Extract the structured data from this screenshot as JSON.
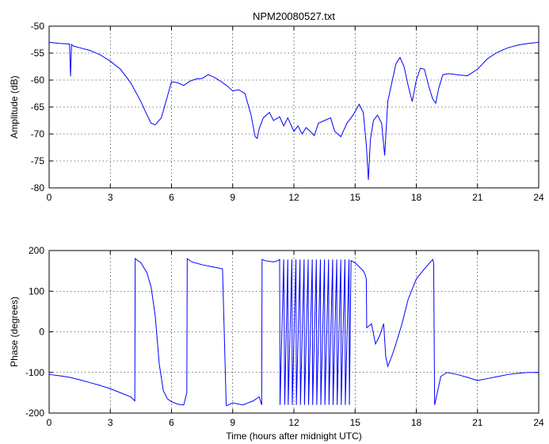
{
  "chart_data": [
    {
      "type": "line",
      "title": "NPM20080527.txt",
      "xlabel": "",
      "ylabel": "Amplitude (dB)",
      "xlim": [
        0,
        24
      ],
      "ylim": [
        -80,
        -50
      ],
      "xticks": [
        0,
        3,
        6,
        9,
        12,
        15,
        18,
        21,
        24
      ],
      "yticks": [
        -80,
        -75,
        -70,
        -65,
        -60,
        -55,
        -50
      ],
      "grid": true,
      "color": "#0000ff",
      "series": [
        {
          "x": [
            0,
            0.5,
            1.0,
            1.05,
            1.1,
            1.15,
            1.2,
            1.5,
            2.0,
            2.5,
            3.0,
            3.5,
            4.0,
            4.5,
            4.8,
            5.0,
            5.2,
            5.5,
            5.8,
            6.0,
            6.3,
            6.6,
            6.9,
            7.2,
            7.5,
            7.8,
            8.1,
            8.4,
            8.7,
            9.0,
            9.3,
            9.6,
            9.9,
            10.1,
            10.2,
            10.3,
            10.5,
            10.8,
            11.0,
            11.3,
            11.5,
            11.7,
            12.0,
            12.2,
            12.4,
            12.6,
            12.8,
            13.0,
            13.2,
            13.5,
            13.8,
            14.0,
            14.3,
            14.6,
            14.9,
            15.2,
            15.4,
            15.55,
            15.65,
            15.75,
            15.9,
            16.1,
            16.3,
            16.45,
            16.6,
            16.8,
            17.0,
            17.2,
            17.4,
            17.6,
            17.8,
            18.0,
            18.2,
            18.4,
            18.6,
            18.8,
            18.95,
            19.1,
            19.3,
            19.6,
            20.0,
            20.5,
            21.0,
            21.5,
            22.0,
            22.5,
            23.0,
            23.5,
            24.0
          ],
          "y": [
            -53.0,
            -53.2,
            -53.3,
            -59.3,
            -53.4,
            -53.6,
            -53.7,
            -54.0,
            -54.5,
            -55.3,
            -56.5,
            -58.0,
            -60.5,
            -64.0,
            -66.5,
            -68.0,
            -68.3,
            -67.0,
            -63.0,
            -60.3,
            -60.5,
            -61.0,
            -60.2,
            -59.8,
            -59.7,
            -59.0,
            -59.5,
            -60.2,
            -61.0,
            -62.0,
            -61.8,
            -62.5,
            -66.5,
            -70.5,
            -70.8,
            -69.0,
            -67.0,
            -66.0,
            -67.5,
            -66.8,
            -68.5,
            -67.0,
            -69.5,
            -68.5,
            -70.0,
            -68.8,
            -69.5,
            -70.3,
            -68.0,
            -67.5,
            -67.0,
            -69.5,
            -70.5,
            -68.0,
            -66.5,
            -64.5,
            -66.0,
            -72.0,
            -78.5,
            -71.0,
            -67.5,
            -66.5,
            -68.0,
            -74.0,
            -64.0,
            -60.5,
            -57.0,
            -55.8,
            -57.5,
            -61.0,
            -64.0,
            -60.0,
            -57.8,
            -58.0,
            -61.0,
            -63.5,
            -64.3,
            -61.5,
            -59.0,
            -58.8,
            -59.0,
            -59.2,
            -58.0,
            -56.0,
            -54.8,
            -54.0,
            -53.5,
            -53.2,
            -53.0
          ]
        }
      ]
    },
    {
      "type": "line",
      "title": "",
      "xlabel": "Time (hours after midnight UTC)",
      "ylabel": "Phase (degrees)",
      "xlim": [
        0,
        24
      ],
      "ylim": [
        -200,
        200
      ],
      "xticks": [
        0,
        3,
        6,
        9,
        12,
        15,
        18,
        21,
        24
      ],
      "yticks": [
        -200,
        -100,
        0,
        100,
        200
      ],
      "grid": true,
      "color": "#0000ff",
      "series": [
        {
          "x": [
            0,
            0.5,
            1.0,
            1.5,
            2.0,
            2.5,
            3.0,
            3.5,
            4.0,
            4.2,
            4.22,
            4.5,
            4.8,
            5.0,
            5.2,
            5.4,
            5.6,
            5.8,
            6.0,
            6.3,
            6.6,
            6.75,
            6.77,
            7.0,
            7.5,
            8.0,
            8.5,
            8.68,
            8.7,
            9.0,
            9.5,
            10.0,
            10.3,
            10.42,
            10.44,
            10.6,
            11.0,
            11.2,
            11.3,
            11.32,
            11.5,
            11.55,
            11.7,
            11.72,
            11.9,
            11.92,
            12.1,
            12.12,
            12.3,
            12.32,
            12.5,
            12.52,
            12.7,
            12.72,
            12.9,
            12.92,
            13.1,
            13.12,
            13.3,
            13.32,
            13.5,
            13.52,
            13.7,
            13.72,
            13.9,
            13.92,
            14.1,
            14.12,
            14.3,
            14.32,
            14.5,
            14.52,
            14.7,
            14.72,
            14.8,
            15.0,
            15.2,
            15.4,
            15.5,
            15.55,
            15.57,
            15.7,
            15.8,
            16.0,
            16.2,
            16.4,
            16.5,
            16.6,
            16.8,
            17.0,
            17.3,
            17.6,
            18.0,
            18.4,
            18.8,
            18.85,
            18.9,
            19.2,
            19.5,
            20.0,
            20.5,
            21.0,
            21.5,
            22.0,
            22.5,
            23.0,
            23.5,
            24.0
          ],
          "y": [
            -105,
            -108,
            -112,
            -118,
            -125,
            -132,
            -140,
            -150,
            -160,
            -170,
            180,
            170,
            145,
            110,
            40,
            -80,
            -145,
            -165,
            -172,
            -178,
            -180,
            -150,
            180,
            172,
            165,
            160,
            155,
            -178,
            -182,
            -175,
            -180,
            -170,
            -160,
            -180,
            178,
            175,
            172,
            175,
            178,
            -180,
            178,
            -180,
            178,
            -180,
            178,
            -180,
            178,
            -180,
            178,
            -180,
            178,
            -180,
            178,
            -180,
            178,
            -180,
            178,
            -180,
            178,
            -180,
            178,
            -180,
            178,
            -180,
            178,
            -180,
            178,
            -180,
            178,
            -180,
            178,
            -180,
            178,
            -180,
            175,
            170,
            160,
            150,
            140,
            130,
            10,
            15,
            20,
            -30,
            -10,
            20,
            -60,
            -85,
            -60,
            -30,
            20,
            80,
            130,
            155,
            178,
            170,
            -180,
            -110,
            -100,
            -105,
            -112,
            -120,
            -115,
            -110,
            -105,
            -102,
            -100,
            -100
          ]
        }
      ]
    }
  ]
}
